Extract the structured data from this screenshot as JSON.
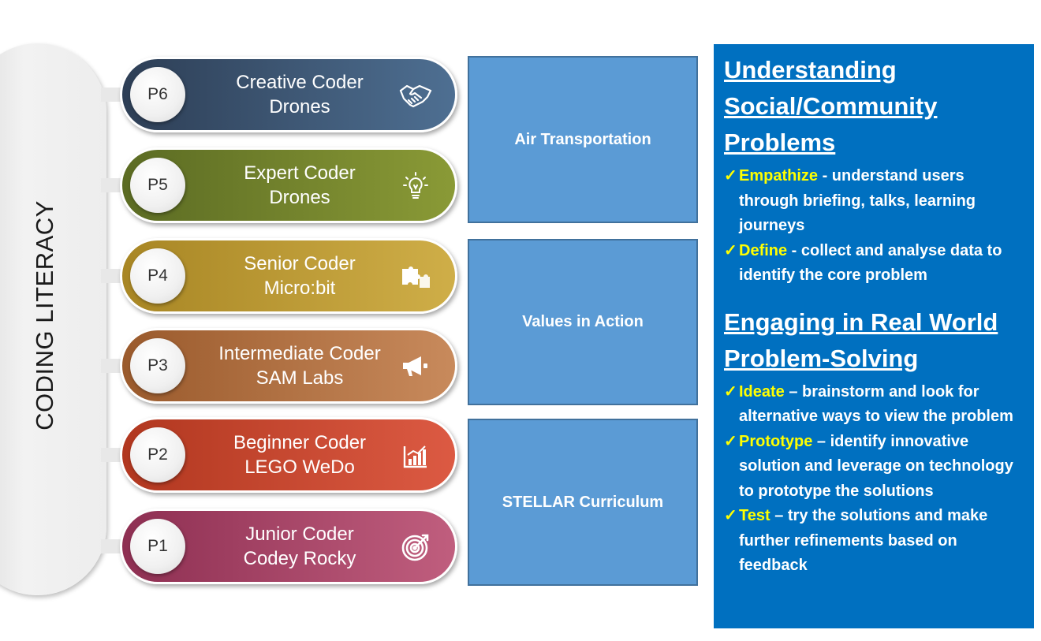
{
  "side_label": "CODING LITERACY",
  "levels": [
    {
      "badge": "P6",
      "title": "Creative Coder",
      "subtitle": "Drones",
      "icon": "handshake-icon",
      "color_start": "#2d3e55",
      "color_end": "#4e6f92"
    },
    {
      "badge": "P5",
      "title": "Expert Coder",
      "subtitle": "Drones",
      "icon": "lightbulb-icon",
      "color_start": "#5b6b23",
      "color_end": "#8a9a36"
    },
    {
      "badge": "P4",
      "title": "Senior Coder",
      "subtitle": "Micro:bit",
      "icon": "puzzle-icon",
      "color_start": "#a88624",
      "color_end": "#cfae48"
    },
    {
      "badge": "P3",
      "title": "Intermediate Coder",
      "subtitle": "SAM Labs",
      "icon": "megaphone-icon",
      "color_start": "#9a5a2c",
      "color_end": "#c88a5c"
    },
    {
      "badge": "P2",
      "title": "Beginner Coder",
      "subtitle": "LEGO WeDo",
      "icon": "chart-icon",
      "color_start": "#b1371f",
      "color_end": "#dc5a43"
    },
    {
      "badge": "P1",
      "title": "Junior Coder",
      "subtitle": "Codey Rocky",
      "icon": "target-icon",
      "color_start": "#8e2f52",
      "color_end": "#c05e7e"
    }
  ],
  "themes": [
    "Air Transportation",
    "Values in Action",
    "STELLAR Curriculum"
  ],
  "panel": {
    "section1": {
      "heading_lines": [
        "Understanding",
        "Social/Community",
        "Problems"
      ],
      "items": [
        {
          "keyword": "Empathize",
          "text": " - understand users through briefing, talks, learning journeys"
        },
        {
          "keyword": "Define",
          "text": " - collect and analyse data to identify the core problem"
        }
      ]
    },
    "section2": {
      "heading_lines": [
        "Engaging in Real World",
        "Problem-Solving"
      ],
      "items": [
        {
          "keyword": "Ideate",
          "text": " – brainstorm and look for alternative ways to view the problem"
        },
        {
          "keyword": "Prototype",
          "text": " – identify innovative solution and leverage on technology to prototype the solutions"
        },
        {
          "keyword": "Test",
          "text": " – try the solutions and make further refinements based on feedback"
        }
      ]
    },
    "check_glyph": "✓"
  }
}
